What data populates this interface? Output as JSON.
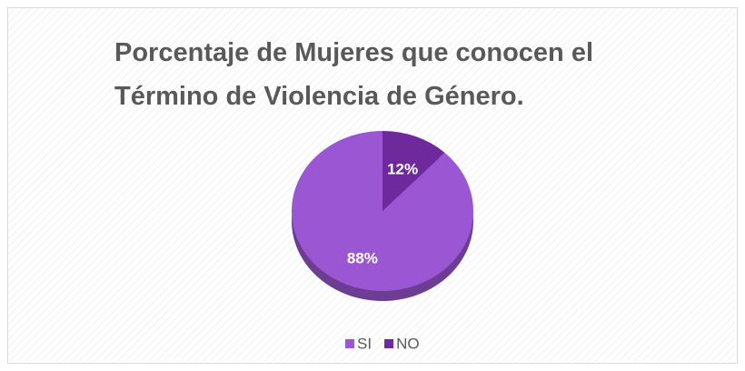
{
  "chart_data": {
    "type": "pie",
    "title": "Porcentaje de Mujeres que conocen el Término de Violencia de Género.",
    "categories": [
      "SI",
      "NO"
    ],
    "values": [
      88,
      12
    ],
    "value_labels": [
      "88%",
      "12%"
    ],
    "colors": [
      "#9b57d3",
      "#6e2a9c"
    ],
    "legend": "bottom"
  }
}
